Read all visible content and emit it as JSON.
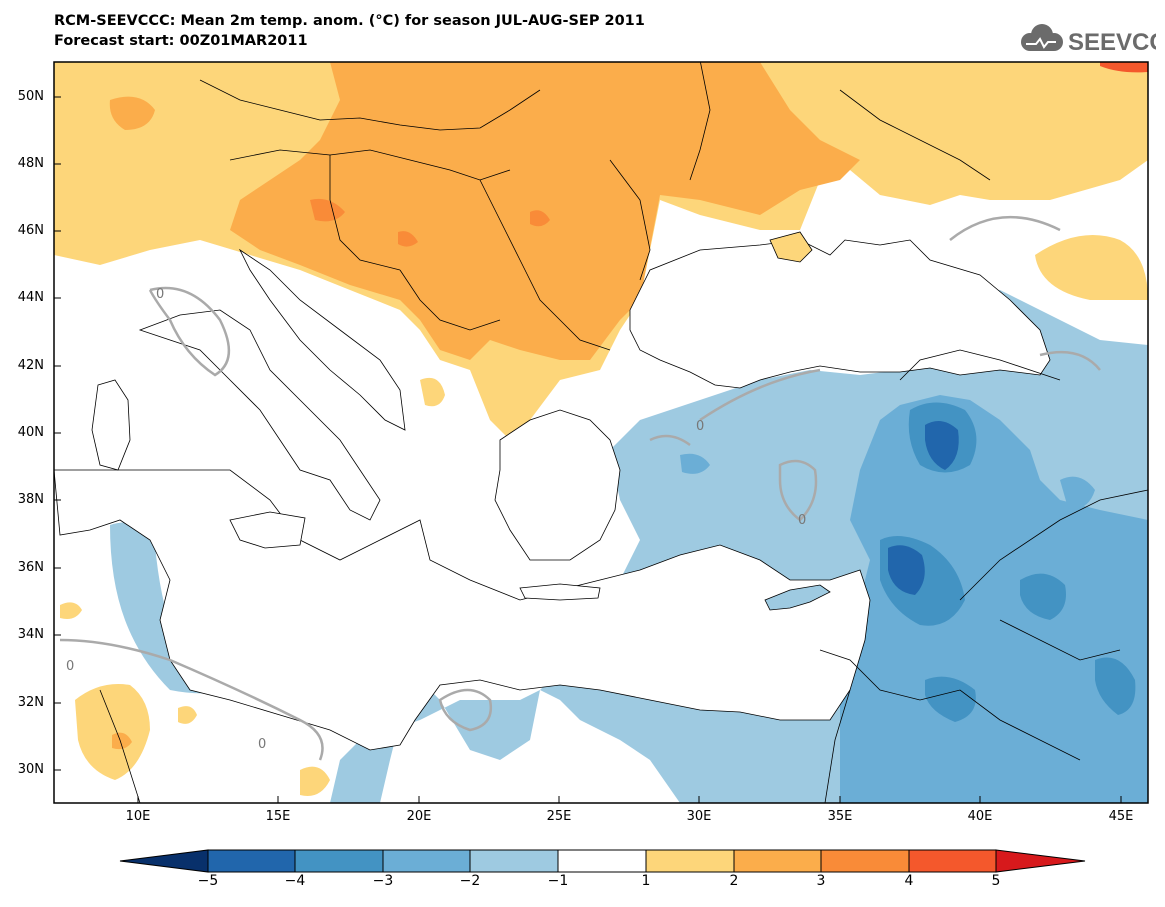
{
  "header": {
    "title_line1": "RCM-SEEVCCC: Mean 2m temp. anom. (°C) for season JUL-AUG-SEP 2011",
    "title_line2": "Forecast start: 00Z01MAR2011",
    "logo_text": "SEEVCCC",
    "logo_icon": "cloud-icon"
  },
  "axes": {
    "lat_labels": [
      "50N",
      "48N",
      "46N",
      "44N",
      "42N",
      "40N",
      "38N",
      "36N",
      "34N",
      "32N",
      "30N"
    ],
    "lon_labels": [
      "10E",
      "15E",
      "20E",
      "25E",
      "30E",
      "35E",
      "40E",
      "45E"
    ],
    "lat_range": [
      29,
      51
    ],
    "lon_range": [
      7,
      46
    ]
  },
  "legend": {
    "tick_labels": [
      "−5",
      "−4",
      "−3",
      "−2",
      "−1",
      "1",
      "2",
      "3",
      "4",
      "5"
    ],
    "colors": [
      "#08306b",
      "#2166ac",
      "#4393c3",
      "#6baed6",
      "#9ecae1",
      "#ffffff",
      "#fdd67a",
      "#fbad4b",
      "#f98b38",
      "#f4582c",
      "#d7191c"
    ]
  },
  "contour_label": "0",
  "colors": {
    "anomaly_plus1": "#fdd67a",
    "anomaly_plus2": "#fbad4b",
    "anomaly_plus3": "#f98b38",
    "anomaly_plus4": "#f4582c",
    "anomaly_minus1": "#9ecae1",
    "anomaly_minus2": "#6baed6",
    "anomaly_minus3": "#4393c3",
    "anomaly_minus4": "#2166ac",
    "zero_contour": "#aaaaaa",
    "border": "#000000"
  }
}
